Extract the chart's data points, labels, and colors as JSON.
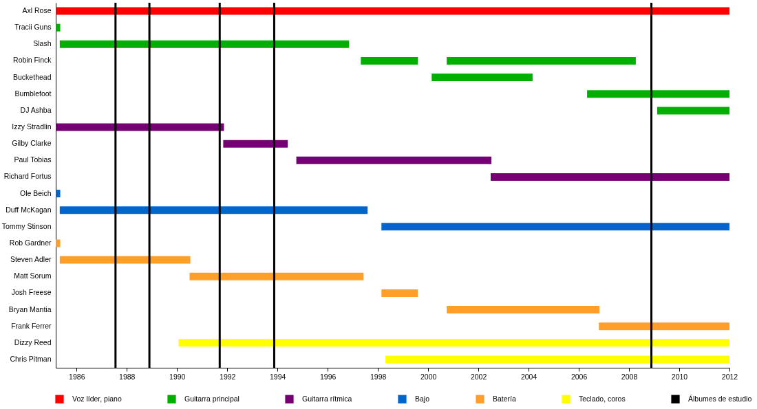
{
  "chart_data": {
    "type": "bar",
    "orientation": "horizontal",
    "categories": [
      "Axl Rose",
      "Tracii Guns",
      "Slash",
      "Robin Finck",
      "Buckethead",
      "Bumblefoot",
      "DJ Ashba",
      "Izzy Stradlin",
      "Gilby Clarke",
      "Paul Tobias",
      "Richard Fortus",
      "Ole Beich",
      "Duff McKagan",
      "Tommy Stinson",
      "Rob Gardner",
      "Steven Adler",
      "Matt Sorum",
      "Josh Freese",
      "Bryan Mantia",
      "Frank Ferrer",
      "Dizzy Reed",
      "Chris Pitman"
    ],
    "series": [
      {
        "name": "Voz líder, piano",
        "color": "#ff0000",
        "values": [
          26.83,
          null,
          null,
          null,
          null,
          null,
          null,
          null,
          null,
          null,
          null,
          null,
          null,
          null,
          null,
          null,
          null,
          null,
          null,
          null,
          null,
          null
        ],
        "base": [
          1985.17,
          null,
          null,
          null,
          null,
          null,
          null,
          null,
          null,
          null,
          null,
          null,
          null,
          null,
          null,
          null,
          null,
          null,
          null,
          null,
          null,
          null
        ]
      },
      {
        "name": "Guitarra principal",
        "color": "#00b000",
        "values": [
          null,
          0.18,
          11.52,
          2.27,
          4.02,
          5.67,
          2.88,
          null,
          null,
          null,
          null,
          null,
          null,
          null,
          null,
          null,
          null,
          null,
          null,
          null,
          null,
          null
        ],
        "base": [
          null,
          1985.17,
          1985.33,
          1997.32,
          2000.14,
          2006.33,
          2009.12,
          null,
          null,
          null,
          null,
          null,
          null,
          null,
          null,
          null,
          null,
          null,
          null,
          null,
          null,
          null
        ]
      },
      {
        "name": "Guitarra rítmica",
        "color": "#740074",
        "values": [
          null,
          null,
          null,
          null,
          null,
          null,
          null,
          6.7,
          2.57,
          7.77,
          9.51,
          null,
          null,
          null,
          null,
          null,
          null,
          null,
          null,
          null,
          null,
          null
        ],
        "base": [
          null,
          null,
          null,
          null,
          null,
          null,
          null,
          1985.17,
          1991.84,
          1994.75,
          2002.49,
          null,
          null,
          null,
          null,
          null,
          null,
          null,
          null,
          null,
          null,
          null
        ]
      },
      {
        "name": "Bajo",
        "color": "#0066cc",
        "values": [
          null,
          null,
          null,
          null,
          null,
          null,
          null,
          null,
          null,
          null,
          null,
          0.18,
          12.26,
          13.86,
          null,
          null,
          null,
          null,
          null,
          null,
          null,
          null
        ],
        "base": [
          null,
          null,
          null,
          null,
          null,
          null,
          null,
          null,
          null,
          null,
          null,
          1985.17,
          1985.33,
          1998.14,
          null,
          null,
          null,
          null,
          null,
          null,
          null,
          null
        ]
      },
      {
        "name": "Batería",
        "color": "#ff9f2a",
        "values": [
          null,
          null,
          null,
          null,
          null,
          null,
          null,
          null,
          null,
          null,
          null,
          null,
          null,
          null,
          0.18,
          5.2,
          6.93,
          1.45,
          6.08,
          5.2,
          null,
          null
        ],
        "base": [
          null,
          null,
          null,
          null,
          null,
          null,
          null,
          null,
          null,
          null,
          null,
          null,
          null,
          null,
          1985.17,
          1985.33,
          1990.5,
          1998.14,
          2000.74,
          2006.8,
          null,
          null
        ]
      },
      {
        "name": "Teclado, coros",
        "color": "#ffff00",
        "values": [
          null,
          null,
          null,
          null,
          null,
          null,
          null,
          null,
          null,
          null,
          null,
          null,
          null,
          null,
          null,
          null,
          null,
          null,
          null,
          null,
          21.94,
          13.7
        ],
        "base": [
          null,
          null,
          null,
          null,
          null,
          null,
          null,
          null,
          null,
          null,
          null,
          null,
          null,
          null,
          null,
          null,
          null,
          null,
          null,
          null,
          1990.06,
          1998.3
        ]
      },
      {
        "color": "#00b000",
        "values": [
          null,
          null,
          null,
          7.53,
          null,
          null,
          null,
          null,
          null,
          null,
          null,
          null,
          null,
          null,
          null,
          null,
          null,
          null,
          null,
          null,
          null,
          null
        ],
        "base": [
          null,
          null,
          null,
          2000.74,
          null,
          null,
          null,
          null,
          null,
          null,
          null,
          null,
          null,
          null,
          null,
          null,
          null,
          null,
          null,
          null,
          null,
          null
        ]
      }
    ],
    "ref_lines": [
      {
        "axis": "x",
        "value": 1987.55,
        "label": "Álbumes de estudio",
        "color": "#000000"
      },
      {
        "axis": "x",
        "value": 1988.9,
        "color": "#000000"
      },
      {
        "axis": "x",
        "value": 1991.7,
        "color": "#000000"
      },
      {
        "axis": "x",
        "value": 1993.87,
        "color": "#000000"
      },
      {
        "axis": "x",
        "value": 2008.89,
        "color": "#000000"
      }
    ],
    "xlim": [
      1985.17,
      2012
    ],
    "xticks": [
      1986,
      1988,
      1990,
      1992,
      1994,
      1996,
      1998,
      2000,
      2002,
      2004,
      2006,
      2008,
      2010,
      2012
    ],
    "legend": "bottom"
  }
}
